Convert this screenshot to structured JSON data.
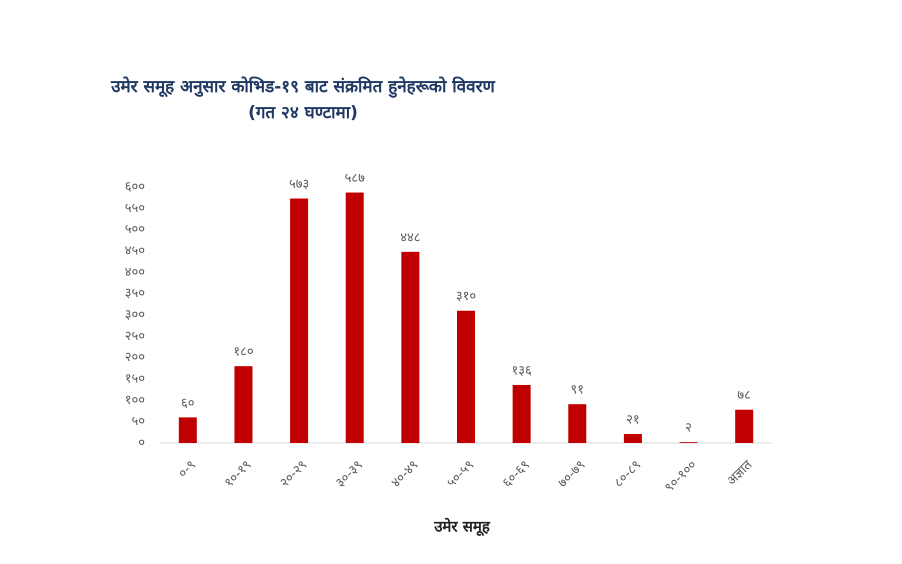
{
  "chart_data": {
    "type": "bar",
    "title": "उमेर समूह अनुसार कोभिड-१९ बाट संक्रमित हुनेहरूको विवरण",
    "subtitle": "(गत २४ घण्टामा)",
    "x_label": "उमेर समूह",
    "categories": [
      "०-९",
      "१०-१९",
      "२०-२९",
      "३०-३९",
      "४०-४९",
      "५०-५९",
      "६०-६९",
      "७०-७९",
      "८०-८९",
      "९०-१००",
      "अज्ञात"
    ],
    "values": [
      60,
      180,
      573,
      587,
      448,
      310,
      136,
      91,
      21,
      2,
      78
    ],
    "value_labels": [
      "६०",
      "१८०",
      "५७३",
      "५८७",
      "४४८",
      "३१०",
      "१३६",
      "९१",
      "२१",
      "२",
      "७८"
    ],
    "color": "#c00000",
    "ylim": [
      0,
      600
    ],
    "yticks": [
      {
        "value": 0,
        "label": "०"
      },
      {
        "value": 50,
        "label": "५०"
      },
      {
        "value": 100,
        "label": "१००"
      },
      {
        "value": 150,
        "label": "१५०"
      },
      {
        "value": 200,
        "label": "२००"
      },
      {
        "value": 250,
        "label": "२५०"
      },
      {
        "value": 300,
        "label": "३००"
      },
      {
        "value": 350,
        "label": "३५०"
      },
      {
        "value": 400,
        "label": "४००"
      },
      {
        "value": 450,
        "label": "४५०"
      },
      {
        "value": 500,
        "label": "५००"
      },
      {
        "value": 550,
        "label": "५५०"
      },
      {
        "value": 600,
        "label": "६००"
      }
    ],
    "grid": false
  }
}
